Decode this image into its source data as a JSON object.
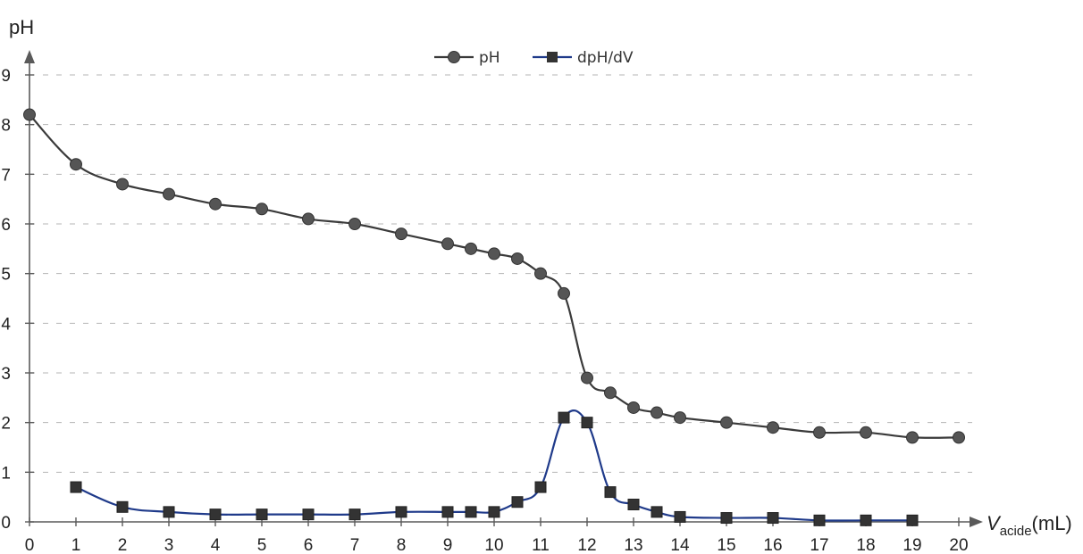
{
  "chart_data": {
    "type": "line",
    "title": "",
    "ylabel": "pH",
    "xlabel": {
      "symbol": "V",
      "subscript": "acide",
      "unit": "(mL)"
    },
    "xlim": [
      0,
      20
    ],
    "ylim": [
      0,
      9
    ],
    "x_ticks": [
      0,
      1,
      2,
      3,
      4,
      5,
      6,
      7,
      8,
      9,
      10,
      11,
      12,
      13,
      14,
      15,
      16,
      17,
      18,
      19,
      20
    ],
    "y_ticks": [
      0,
      1,
      2,
      3,
      4,
      5,
      6,
      7,
      8,
      9
    ],
    "grid": true,
    "legend_position": "top-center",
    "series": [
      {
        "name": "pH",
        "marker": "circle",
        "color": "#3a3a3a",
        "x": [
          0,
          1,
          2,
          3,
          4,
          5,
          6,
          7,
          8,
          9,
          9.5,
          10,
          10.5,
          11,
          11.5,
          12,
          12.5,
          13,
          13.5,
          14,
          15,
          16,
          17,
          18,
          19,
          20
        ],
        "y": [
          8.2,
          7.2,
          6.8,
          6.6,
          6.4,
          6.3,
          6.1,
          6.0,
          5.8,
          5.6,
          5.5,
          5.4,
          5.3,
          5.0,
          4.6,
          2.9,
          2.6,
          2.3,
          2.2,
          2.1,
          2.0,
          1.9,
          1.8,
          1.8,
          1.7,
          1.7
        ]
      },
      {
        "name": "dpH/dV",
        "marker": "square",
        "color": "#1f3a8a",
        "x": [
          1,
          2,
          3,
          4,
          5,
          6,
          7,
          8,
          9,
          9.5,
          10,
          10.5,
          11,
          11.5,
          12,
          12.5,
          13,
          13.5,
          14,
          15,
          16,
          17,
          18,
          19
        ],
        "y": [
          0.7,
          0.3,
          0.2,
          0.15,
          0.15,
          0.15,
          0.15,
          0.2,
          0.2,
          0.2,
          0.2,
          0.4,
          0.7,
          2.1,
          2.0,
          0.6,
          0.35,
          0.2,
          0.1,
          0.08,
          0.08,
          0.03,
          0.03,
          0.03
        ]
      }
    ]
  }
}
